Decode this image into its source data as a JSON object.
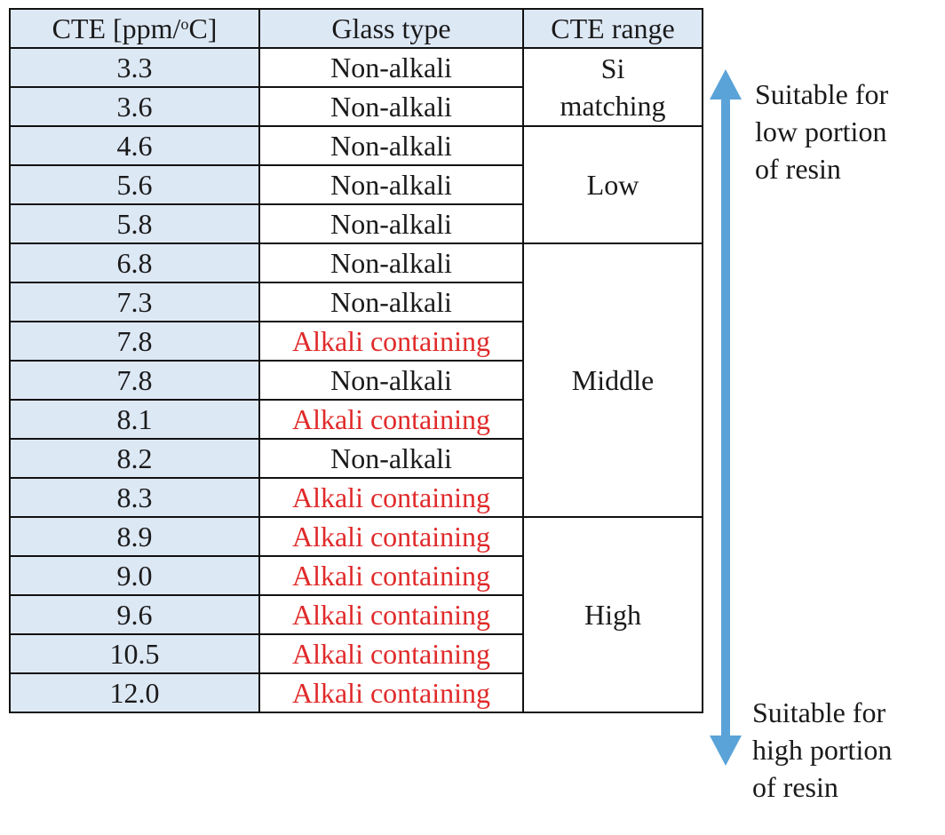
{
  "table": {
    "headers": {
      "cte": "CTE [ppm/",
      "cte_sup": "o",
      "cte_tail": "C]",
      "glass": "Glass type",
      "range": "CTE range"
    },
    "rows": [
      {
        "cte": "3.3",
        "glass": "Non-alkali"
      },
      {
        "cte": "3.6",
        "glass": "Non-alkali"
      },
      {
        "cte": "4.6",
        "glass": "Non-alkali"
      },
      {
        "cte": "5.6",
        "glass": "Non-alkali"
      },
      {
        "cte": "5.8",
        "glass": "Non-alkali"
      },
      {
        "cte": "6.8",
        "glass": "Non-alkali"
      },
      {
        "cte": "7.3",
        "glass": "Non-alkali"
      },
      {
        "cte": "7.8",
        "glass": "Alkali containing"
      },
      {
        "cte": "7.8",
        "glass": "Non-alkali"
      },
      {
        "cte": "8.1",
        "glass": "Alkali containing"
      },
      {
        "cte": "8.2",
        "glass": "Non-alkali"
      },
      {
        "cte": "8.3",
        "glass": "Alkali containing"
      },
      {
        "cte": "8.9",
        "glass": "Alkali containing"
      },
      {
        "cte": "9.0",
        "glass": "Alkali containing"
      },
      {
        "cte": "9.6",
        "glass": "Alkali containing"
      },
      {
        "cte": "10.5",
        "glass": "Alkali containing"
      },
      {
        "cte": "12.0",
        "glass": "Alkali containing"
      }
    ],
    "ranges": [
      {
        "lines": [
          "Si",
          "matching"
        ],
        "rows": 2
      },
      {
        "lines": [
          "Low"
        ],
        "rows": 3
      },
      {
        "lines": [
          "Middle"
        ],
        "rows": 7
      },
      {
        "lines": [
          "High"
        ],
        "rows": 5
      }
    ]
  },
  "side_notes": {
    "top": [
      "Suitable for",
      "low portion",
      "of resin"
    ],
    "bottom": [
      "Suitable for",
      "high portion",
      "of resin"
    ]
  },
  "colors": {
    "header_fill": "#dde8f5",
    "alkali_text": "#e02a2a",
    "arrow": "#5aa3d8"
  },
  "icons": {
    "arrow": "double-headed-vertical-arrow"
  }
}
